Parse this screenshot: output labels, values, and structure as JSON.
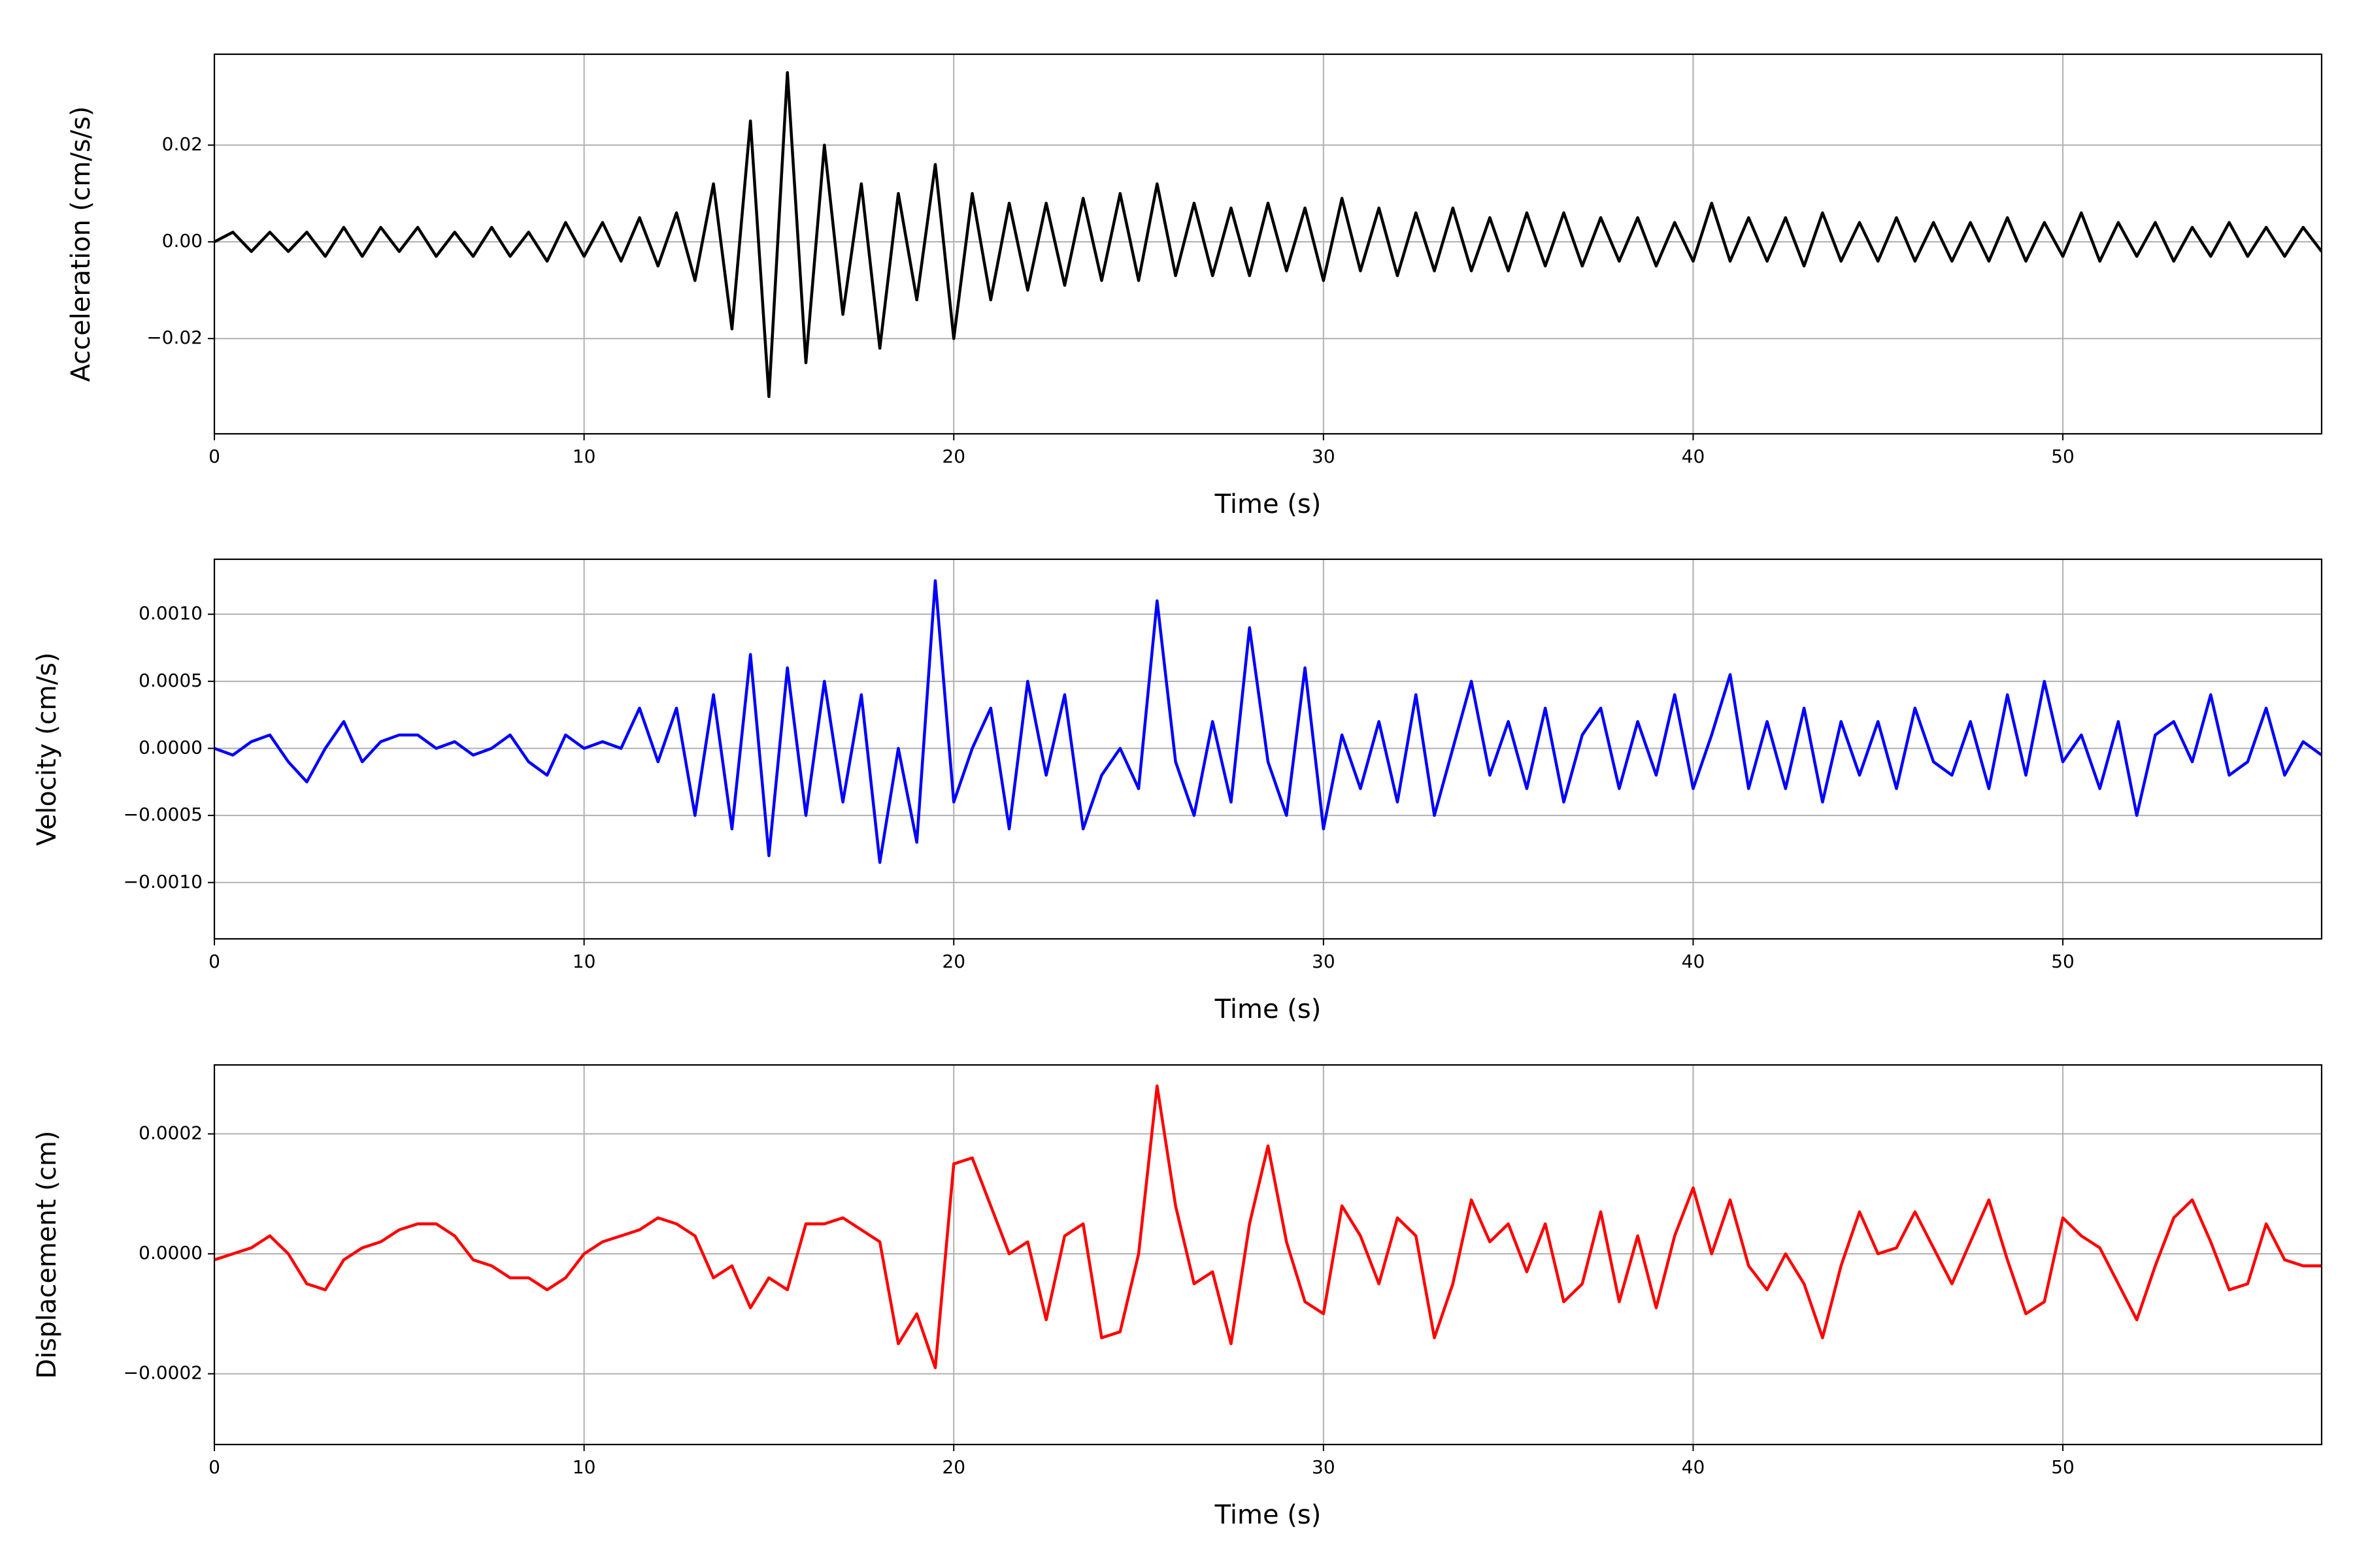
{
  "chart_data": [
    {
      "type": "line",
      "xlabel": "Time (s)",
      "ylabel": "Acceleration (cm/s/s)",
      "color": "#000000",
      "grid": true,
      "xlim": [
        0,
        57
      ],
      "xticks": [
        0,
        10,
        20,
        30,
        40,
        50
      ],
      "ylim": [
        -0.0397,
        0.0388
      ],
      "yticks": [
        {
          "value": -0.02,
          "label": "−0.02"
        },
        {
          "value": 0,
          "label": "0.00"
        },
        0.02
      ],
      "x": [
        0,
        0.5,
        1,
        1.5,
        2,
        2.5,
        3,
        3.5,
        4,
        4.5,
        5,
        5.5,
        6,
        6.5,
        7,
        7.5,
        8,
        8.5,
        9,
        9.5,
        10,
        10.5,
        11,
        11.5,
        12,
        12.5,
        13,
        13.5,
        14,
        14.5,
        15,
        15.5,
        16,
        16.5,
        17,
        17.5,
        18,
        18.5,
        19,
        19.5,
        20,
        20.5,
        21,
        21.5,
        22,
        22.5,
        23,
        23.5,
        24,
        24.5,
        25,
        25.5,
        26,
        26.5,
        27,
        27.5,
        28,
        28.5,
        29,
        29.5,
        30,
        30.5,
        31,
        31.5,
        32,
        32.5,
        33,
        33.5,
        34,
        34.5,
        35,
        35.5,
        36,
        36.5,
        37,
        37.5,
        38,
        38.5,
        39,
        39.5,
        40,
        40.5,
        41,
        41.5,
        42,
        42.5,
        43,
        43.5,
        44,
        44.5,
        45,
        45.5,
        46,
        46.5,
        47,
        47.5,
        48,
        48.5,
        49,
        49.5,
        50,
        50.5,
        51,
        51.5,
        52,
        52.5,
        53,
        53.5,
        54,
        54.5,
        55,
        55.5,
        56,
        56.5,
        57
      ],
      "values": [
        0,
        0.002,
        -0.002,
        0.002,
        -0.002,
        0.002,
        -0.003,
        0.003,
        -0.003,
        0.003,
        -0.002,
        0.003,
        -0.003,
        0.002,
        -0.003,
        0.003,
        -0.003,
        0.002,
        -0.004,
        0.004,
        -0.003,
        0.004,
        -0.004,
        0.005,
        -0.005,
        0.006,
        -0.008,
        0.012,
        -0.018,
        0.025,
        -0.032,
        0.035,
        -0.025,
        0.02,
        -0.015,
        0.012,
        -0.022,
        0.01,
        -0.012,
        0.016,
        -0.02,
        0.01,
        -0.012,
        0.008,
        -0.01,
        0.008,
        -0.009,
        0.009,
        -0.008,
        0.01,
        -0.008,
        0.012,
        -0.007,
        0.008,
        -0.007,
        0.007,
        -0.007,
        0.008,
        -0.006,
        0.007,
        -0.008,
        0.009,
        -0.006,
        0.007,
        -0.007,
        0.006,
        -0.006,
        0.007,
        -0.006,
        0.005,
        -0.006,
        0.006,
        -0.005,
        0.006,
        -0.005,
        0.005,
        -0.004,
        0.005,
        -0.005,
        0.004,
        -0.004,
        0.008,
        -0.004,
        0.005,
        -0.004,
        0.005,
        -0.005,
        0.006,
        -0.004,
        0.004,
        -0.004,
        0.005,
        -0.004,
        0.004,
        -0.004,
        0.004,
        -0.004,
        0.005,
        -0.004,
        0.004,
        -0.003,
        0.006,
        -0.004,
        0.004,
        -0.003,
        0.004,
        -0.004,
        0.003,
        -0.003,
        0.004,
        -0.003,
        0.003,
        -0.003,
        0.003,
        -0.002
      ]
    },
    {
      "type": "line",
      "xlabel": "Time (s)",
      "ylabel": "Velocity (cm/s)",
      "color": "#0000ff",
      "grid": true,
      "xlim": [
        0,
        57
      ],
      "xticks": [
        0,
        10,
        20,
        30,
        40,
        50
      ],
      "ylim": [
        -0.00142,
        0.00141
      ],
      "yticks": [
        {
          "value": -0.001,
          "label": "−0.0010"
        },
        {
          "value": -0.0005,
          "label": "−0.0005"
        },
        {
          "value": 0,
          "label": "0.0000"
        },
        0.0005,
        {
          "value": 0.001,
          "label": "0.0010"
        }
      ],
      "x": [
        0,
        0.5,
        1,
        1.5,
        2,
        2.5,
        3,
        3.5,
        4,
        4.5,
        5,
        5.5,
        6,
        6.5,
        7,
        7.5,
        8,
        8.5,
        9,
        9.5,
        10,
        10.5,
        11,
        11.5,
        12,
        12.5,
        13,
        13.5,
        14,
        14.5,
        15,
        15.5,
        16,
        16.5,
        17,
        17.5,
        18,
        18.5,
        19,
        19.5,
        20,
        20.5,
        21,
        21.5,
        22,
        22.5,
        23,
        23.5,
        24,
        24.5,
        25,
        25.5,
        26,
        26.5,
        27,
        27.5,
        28,
        28.5,
        29,
        29.5,
        30,
        30.5,
        31,
        31.5,
        32,
        32.5,
        33,
        33.5,
        34,
        34.5,
        35,
        35.5,
        36,
        36.5,
        37,
        37.5,
        38,
        38.5,
        39,
        39.5,
        40,
        40.5,
        41,
        41.5,
        42,
        42.5,
        43,
        43.5,
        44,
        44.5,
        45,
        45.5,
        46,
        46.5,
        47,
        47.5,
        48,
        48.5,
        49,
        49.5,
        50,
        50.5,
        51,
        51.5,
        52,
        52.5,
        53,
        53.5,
        54,
        54.5,
        55,
        55.5,
        56,
        56.5,
        57
      ],
      "values": [
        0,
        -5e-05,
        5e-05,
        0.0001,
        -0.0001,
        -0.00025,
        0,
        0.0002,
        -0.0001,
        5e-05,
        0.0001,
        0.0001,
        0,
        5e-05,
        -5e-05,
        0,
        0.0001,
        -0.0001,
        -0.0002,
        0.0001,
        0,
        5e-05,
        0,
        0.0003,
        -0.0001,
        0.0003,
        -0.0005,
        0.0004,
        -0.0006,
        0.0007,
        -0.0008,
        0.0006,
        -0.0005,
        0.0005,
        -0.0004,
        0.0004,
        -0.00085,
        0,
        -0.0007,
        0.00125,
        -0.0004,
        0,
        0.0003,
        -0.0006,
        0.0005,
        -0.0002,
        0.0004,
        -0.0006,
        -0.0002,
        0,
        -0.0003,
        0.0011,
        -0.0001,
        -0.0005,
        0.0002,
        -0.0004,
        0.0009,
        -0.0001,
        -0.0005,
        0.0006,
        -0.0006,
        0.0001,
        -0.0003,
        0.0002,
        -0.0004,
        0.0004,
        -0.0005,
        0,
        0.0005,
        -0.0002,
        0.0002,
        -0.0003,
        0.0003,
        -0.0004,
        0.0001,
        0.0003,
        -0.0003,
        0.0002,
        -0.0002,
        0.0004,
        -0.0003,
        0.0001,
        0.00055,
        -0.0003,
        0.0002,
        -0.0003,
        0.0003,
        -0.0004,
        0.0002,
        -0.0002,
        0.0002,
        -0.0003,
        0.0003,
        -0.0001,
        -0.0002,
        0.0002,
        -0.0003,
        0.0004,
        -0.0002,
        0.0005,
        -0.0001,
        0.0001,
        -0.0003,
        0.0002,
        -0.0005,
        0.0001,
        0.0002,
        -0.0001,
        0.0004,
        -0.0002,
        -0.0001,
        0.0003,
        -0.0002,
        5e-05,
        -5e-05
      ]
    },
    {
      "type": "line",
      "xlabel": "Time (s)",
      "ylabel": "Displacement (cm)",
      "color": "#ff0000",
      "grid": true,
      "xlim": [
        0,
        57
      ],
      "xticks": [
        0,
        10,
        20,
        30,
        40,
        50
      ],
      "ylim": [
        -0.000318,
        0.000315
      ],
      "yticks": [
        {
          "value": -0.0002,
          "label": "−0.0002"
        },
        {
          "value": 0,
          "label": "0.0000"
        },
        0.0002
      ],
      "x": [
        0,
        0.5,
        1,
        1.5,
        2,
        2.5,
        3,
        3.5,
        4,
        4.5,
        5,
        5.5,
        6,
        6.5,
        7,
        7.5,
        8,
        8.5,
        9,
        9.5,
        10,
        10.5,
        11,
        11.5,
        12,
        12.5,
        13,
        13.5,
        14,
        14.5,
        15,
        15.5,
        16,
        16.5,
        17,
        17.5,
        18,
        18.5,
        19,
        19.5,
        20,
        20.5,
        21,
        21.5,
        22,
        22.5,
        23,
        23.5,
        24,
        24.5,
        25,
        25.5,
        26,
        26.5,
        27,
        27.5,
        28,
        28.5,
        29,
        29.5,
        30,
        30.5,
        31,
        31.5,
        32,
        32.5,
        33,
        33.5,
        34,
        34.5,
        35,
        35.5,
        36,
        36.5,
        37,
        37.5,
        38,
        38.5,
        39,
        39.5,
        40,
        40.5,
        41,
        41.5,
        42,
        42.5,
        43,
        43.5,
        44,
        44.5,
        45,
        45.5,
        46,
        46.5,
        47,
        47.5,
        48,
        48.5,
        49,
        49.5,
        50,
        50.5,
        51,
        51.5,
        52,
        52.5,
        53,
        53.5,
        54,
        54.5,
        55,
        55.5,
        56,
        56.5,
        57
      ],
      "values": [
        -1e-05,
        0,
        1e-05,
        3e-05,
        0,
        -5e-05,
        -6e-05,
        -1e-05,
        1e-05,
        2e-05,
        4e-05,
        5e-05,
        5e-05,
        3e-05,
        -1e-05,
        -2e-05,
        -4e-05,
        -4e-05,
        -6e-05,
        -4e-05,
        0,
        2e-05,
        3e-05,
        4e-05,
        6e-05,
        5e-05,
        3e-05,
        -4e-05,
        -2e-05,
        -9e-05,
        -4e-05,
        -6e-05,
        5e-05,
        5e-05,
        6e-05,
        4e-05,
        2e-05,
        -0.00015,
        -0.0001,
        -0.00019,
        0.00015,
        0.00016,
        8e-05,
        0,
        2e-05,
        -0.00011,
        3e-05,
        5e-05,
        -0.00014,
        -0.00013,
        0,
        0.00028,
        8e-05,
        -5e-05,
        -3e-05,
        -0.00015,
        5e-05,
        0.00018,
        2e-05,
        -8e-05,
        -0.0001,
        8e-05,
        3e-05,
        -5e-05,
        6e-05,
        3e-05,
        -0.00014,
        -5e-05,
        9e-05,
        2e-05,
        5e-05,
        -3e-05,
        5e-05,
        -8e-05,
        -5e-05,
        7e-05,
        -8e-05,
        3e-05,
        -9e-05,
        3e-05,
        0.00011,
        0,
        9e-05,
        -2e-05,
        -6e-05,
        0,
        -5e-05,
        -0.00014,
        -2e-05,
        7e-05,
        0,
        1e-05,
        7e-05,
        1e-05,
        -5e-05,
        2e-05,
        9e-05,
        -1e-05,
        -0.0001,
        -8e-05,
        6e-05,
        3e-05,
        1e-05,
        -5e-05,
        -0.00011,
        -2e-05,
        6e-05,
        9e-05,
        2e-05,
        -6e-05,
        -5e-05,
        5e-05,
        -1e-05,
        -2e-05,
        -2e-05
      ]
    }
  ]
}
